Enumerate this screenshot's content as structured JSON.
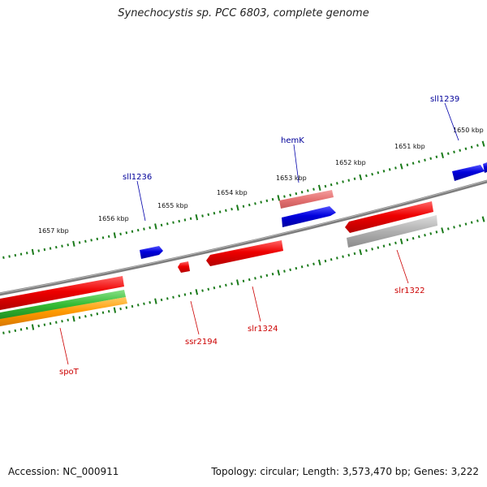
{
  "title": "Synechocystis sp. PCC 6803, complete genome",
  "footer": {
    "accession": "Accession: NC_000911",
    "summary": "Topology: circular; Length: 3,573,470 bp; Genes: 3,222"
  },
  "colors": {
    "backbone": "#808080",
    "ticks": "#1a7a1a",
    "forward_gene": "#0000dd",
    "reverse_gene": "#ee0000",
    "forward_label": "#000099",
    "reverse_label": "#cc0000",
    "gene_dim_red": "#e86a6a",
    "gene_dim_gray": "#b0b0b0",
    "gene_green": "#33bb33",
    "gene_orange": "#ff9900"
  },
  "scale_labels": [
    "1650 kbp",
    "1651 kbp",
    "1652 kbp",
    "1653 kbp",
    "1654 kbp",
    "1655 kbp",
    "1656 kbp",
    "1657 kbp"
  ],
  "gene_labels": {
    "sll1239": "sll1239",
    "hemK": "hemK",
    "sll1236": "sll1236",
    "slr1322": "slr1322",
    "slr1324": "slr1324",
    "ssr2194": "ssr2194",
    "spoT": "spoT"
  }
}
